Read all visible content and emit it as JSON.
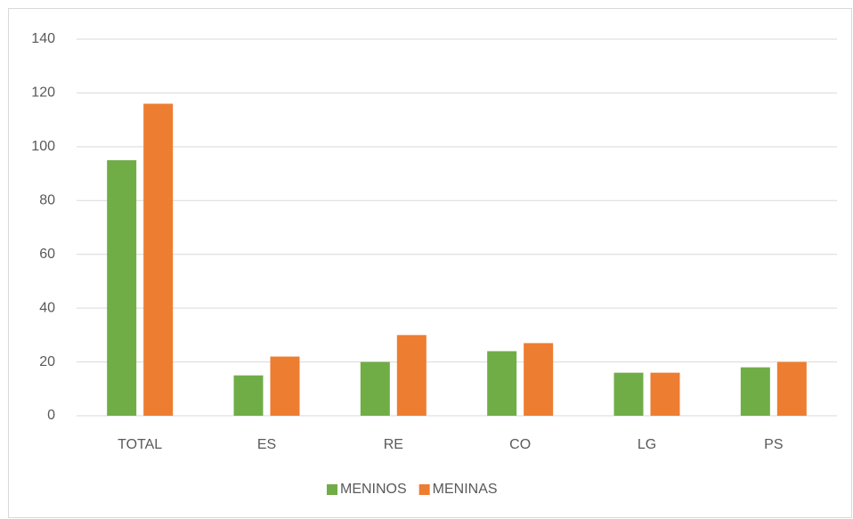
{
  "chart_data": {
    "type": "bar",
    "categories": [
      "TOTAL",
      "ES",
      "RE",
      "CO",
      "LG",
      "PS"
    ],
    "series": [
      {
        "name": "MENINOS",
        "color": "#70ad47",
        "values": [
          95,
          15,
          20,
          24,
          16,
          18
        ]
      },
      {
        "name": "MENINAS",
        "color": "#ed7d31",
        "values": [
          116,
          22,
          30,
          27,
          16,
          20
        ]
      }
    ],
    "ylim": [
      0,
      140
    ],
    "yticks": [
      0,
      20,
      40,
      60,
      80,
      100,
      120,
      140
    ],
    "grid": true,
    "legend": "bottom"
  }
}
